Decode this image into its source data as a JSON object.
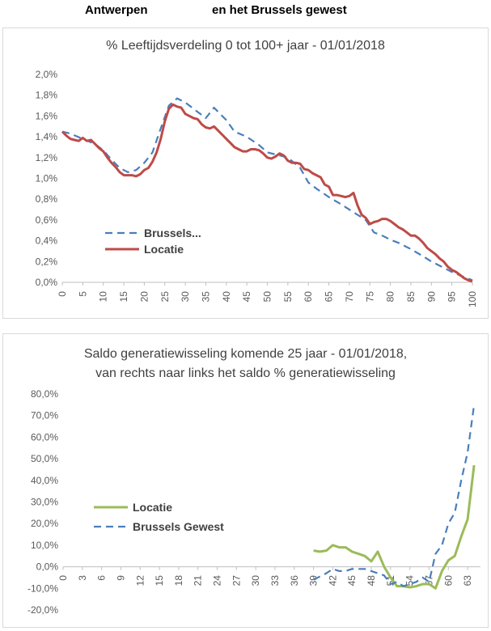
{
  "header": {
    "left": "Antwerpen",
    "right": "en het Brussels gewest"
  },
  "charts": [
    {
      "title": "% Leeftijdsverdeling 0 tot 100+ jaar - 01/01/2018",
      "legend": [
        "Brussels...",
        "Locatie"
      ]
    },
    {
      "title_line1": "Saldo generatiewisseling komende 25 jaar - 01/01/2018,",
      "title_line2": "van rechts naar links  het saldo % generatiewisseling",
      "legend": [
        "Locatie",
        "Brussels Gewest"
      ]
    }
  ],
  "chart_data": [
    {
      "type": "line",
      "title": "% Leeftijdsverdeling 0 tot 100+ jaar - 01/01/2018",
      "x_ticks": [
        0,
        5,
        10,
        15,
        20,
        25,
        30,
        35,
        40,
        45,
        50,
        55,
        60,
        65,
        70,
        75,
        80,
        85,
        90,
        95,
        100
      ],
      "y_ticks": [
        "0,0%",
        "0,2%",
        "0,4%",
        "0,6%",
        "0,8%",
        "1,0%",
        "1,2%",
        "1,4%",
        "1,6%",
        "1,8%",
        "2,0%"
      ],
      "xlim": [
        0,
        100
      ],
      "ylim": [
        0,
        2.0
      ],
      "legend_position": "lower-left",
      "series": [
        {
          "name": "Brussels...",
          "color": "#4a7ebb",
          "style": "dashed",
          "x": [
            0,
            2,
            5,
            8,
            10,
            12,
            14,
            16,
            18,
            20,
            22,
            24,
            26,
            28,
            30,
            32,
            35,
            37,
            40,
            42,
            45,
            48,
            50,
            52,
            55,
            58,
            60,
            62,
            65,
            68,
            70,
            72,
            74,
            76,
            78,
            80,
            82,
            85,
            88,
            90,
            92,
            95,
            98,
            100
          ],
          "y": [
            1.45,
            1.43,
            1.38,
            1.33,
            1.27,
            1.18,
            1.1,
            1.06,
            1.08,
            1.15,
            1.25,
            1.48,
            1.7,
            1.77,
            1.73,
            1.67,
            1.58,
            1.68,
            1.56,
            1.45,
            1.4,
            1.32,
            1.25,
            1.23,
            1.2,
            1.1,
            0.96,
            0.9,
            0.82,
            0.75,
            0.7,
            0.65,
            0.6,
            0.48,
            0.45,
            0.41,
            0.38,
            0.32,
            0.25,
            0.2,
            0.16,
            0.1,
            0.05,
            0.02
          ]
        },
        {
          "name": "Locatie",
          "color": "#be4b48",
          "style": "solid",
          "x": [
            0,
            1,
            2,
            3,
            4,
            5,
            6,
            7,
            8,
            9,
            10,
            11,
            12,
            13,
            14,
            15,
            16,
            17,
            18,
            19,
            20,
            21,
            22,
            23,
            24,
            25,
            26,
            27,
            28,
            29,
            30,
            31,
            32,
            33,
            34,
            35,
            36,
            37,
            38,
            39,
            40,
            41,
            42,
            43,
            44,
            45,
            46,
            47,
            48,
            49,
            50,
            51,
            52,
            53,
            54,
            55,
            56,
            57,
            58,
            59,
            60,
            61,
            62,
            63,
            64,
            65,
            66,
            67,
            68,
            69,
            70,
            71,
            72,
            73,
            74,
            75,
            76,
            77,
            78,
            79,
            80,
            81,
            82,
            83,
            84,
            85,
            86,
            87,
            88,
            89,
            90,
            91,
            92,
            93,
            94,
            95,
            96,
            97,
            98,
            99,
            100
          ],
          "y": [
            1.45,
            1.41,
            1.38,
            1.37,
            1.36,
            1.39,
            1.36,
            1.37,
            1.33,
            1.29,
            1.26,
            1.2,
            1.15,
            1.11,
            1.06,
            1.03,
            1.03,
            1.03,
            1.02,
            1.04,
            1.08,
            1.1,
            1.16,
            1.25,
            1.38,
            1.55,
            1.67,
            1.71,
            1.69,
            1.68,
            1.62,
            1.6,
            1.58,
            1.57,
            1.52,
            1.49,
            1.48,
            1.5,
            1.46,
            1.42,
            1.38,
            1.34,
            1.3,
            1.28,
            1.26,
            1.26,
            1.28,
            1.28,
            1.27,
            1.24,
            1.2,
            1.19,
            1.21,
            1.24,
            1.22,
            1.17,
            1.15,
            1.15,
            1.14,
            1.09,
            1.08,
            1.05,
            1.03,
            1.01,
            0.94,
            0.92,
            0.84,
            0.84,
            0.83,
            0.82,
            0.83,
            0.86,
            0.74,
            0.65,
            0.62,
            0.56,
            0.58,
            0.59,
            0.61,
            0.61,
            0.59,
            0.56,
            0.53,
            0.51,
            0.48,
            0.45,
            0.45,
            0.42,
            0.38,
            0.33,
            0.3,
            0.27,
            0.23,
            0.2,
            0.15,
            0.12,
            0.1,
            0.07,
            0.04,
            0.02,
            0.01
          ]
        }
      ]
    },
    {
      "type": "line",
      "title": "Saldo generatiewisseling komende 25 jaar - 01/01/2018, van rechts naar links  het saldo % generatiewisseling",
      "x_ticks": [
        0,
        3,
        6,
        9,
        12,
        15,
        18,
        21,
        24,
        27,
        30,
        33,
        36,
        39,
        42,
        45,
        48,
        51,
        54,
        57,
        60,
        63
      ],
      "y_ticks": [
        "-20,0%",
        "-10,0%",
        "0,0%",
        "10,0%",
        "20,0%",
        "30,0%",
        "40,0%",
        "50,0%",
        "60,0%",
        "70,0%",
        "80,0%"
      ],
      "xlim": [
        0,
        65
      ],
      "ylim": [
        -20,
        80
      ],
      "legend_position": "middle-left",
      "series": [
        {
          "name": "Locatie",
          "color": "#9bbb59",
          "style": "solid",
          "x": [
            39,
            40,
            41,
            42,
            43,
            44,
            45,
            46,
            47,
            48,
            49,
            50,
            51,
            52,
            53,
            54,
            55,
            56,
            57,
            58,
            59,
            60,
            61,
            62,
            63,
            64
          ],
          "y": [
            7.5,
            7,
            7.5,
            10,
            9,
            9,
            7,
            6,
            5,
            2.5,
            7,
            0,
            -5,
            -9,
            -9,
            -9.5,
            -9,
            -8,
            -8,
            -10,
            -2,
            3,
            5,
            14,
            22,
            47
          ]
        },
        {
          "name": "Brussels Gewest",
          "color": "#4a7ebb",
          "style": "dashed",
          "x": [
            39,
            41,
            42,
            43,
            44,
            45,
            46,
            47,
            48,
            49,
            50,
            51,
            52,
            53,
            54,
            55,
            56,
            57,
            58,
            59,
            60,
            61,
            62,
            63,
            64
          ],
          "y": [
            -6,
            -3,
            -1,
            -2,
            -2,
            -1,
            -1,
            -1,
            -2,
            -3,
            -4,
            -8,
            -7,
            -9,
            -8,
            -7,
            -5,
            -7,
            6,
            10,
            20,
            25,
            40,
            53,
            75
          ]
        }
      ]
    }
  ]
}
